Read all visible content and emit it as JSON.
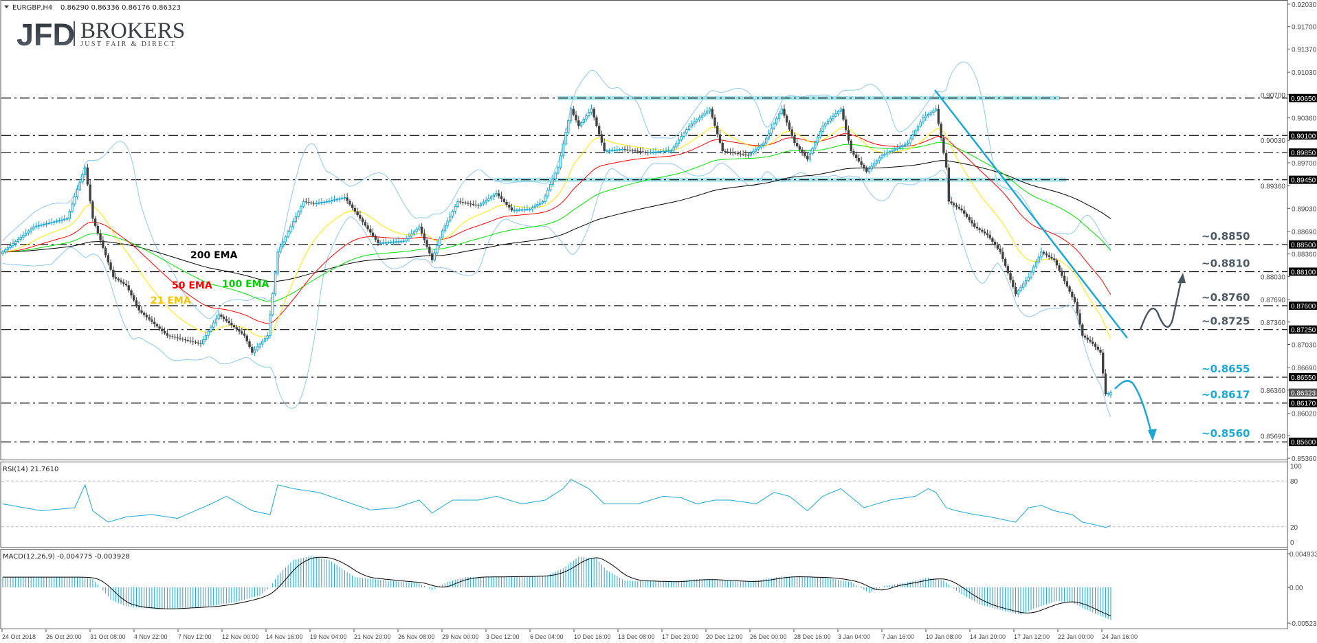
{
  "header": {
    "symbol": "EURGBP,H4",
    "ohlc": "0.86290 0.86336 0.86176 0.86323"
  },
  "logo": {
    "main": "JFD",
    "brand": "BROKERS",
    "tagline": "JUST FAIR & DIRECT"
  },
  "colors": {
    "bull": "#1aa7d6",
    "bear": "#404040",
    "ema21": "#ffe600",
    "ema50": "#ff0000",
    "ema100": "#00e000",
    "ema200": "#000000",
    "bands": "#8cc8f0",
    "zone": "#a8e4ea",
    "trend": "#1aa7d6",
    "ann_grey": "#4b5763",
    "ann_blue": "#1aa7d6"
  },
  "ema_labels": {
    "ema200": "200 EMA",
    "ema50": "50 EMA",
    "ema100": "100 EMA",
    "ema21": "21 EMA"
  },
  "price_axis": [
    "0.92030",
    "0.91700",
    "0.91370",
    "0.91030",
    "0.90700",
    "0.90360",
    "0.90030",
    "0.89700",
    "0.89360",
    "0.89030",
    "0.88690",
    "0.88360",
    "0.88030",
    "0.87690",
    "0.87360",
    "0.87030",
    "0.86690",
    "0.86360",
    "0.86020",
    "0.85690",
    "0.85360"
  ],
  "levels": [
    {
      "price": 0.9065,
      "tag": "0.90650"
    },
    {
      "price": 0.901,
      "tag": "0.90100"
    },
    {
      "price": 0.8985,
      "tag": "0.89850"
    },
    {
      "price": 0.8945,
      "tag": "0.89450"
    },
    {
      "price": 0.885,
      "tag": "0.88500"
    },
    {
      "price": 0.881,
      "tag": "0.88100"
    },
    {
      "price": 0.876,
      "tag": "0.87600"
    },
    {
      "price": 0.8725,
      "tag": "0.87250"
    },
    {
      "price": 0.8655,
      "tag": "0.86550"
    },
    {
      "price": 0.8617,
      "tag": "0.86170"
    },
    {
      "price": 0.856,
      "tag": "0.85600"
    }
  ],
  "current_price": {
    "price": 0.86323,
    "tag": "0.86323"
  },
  "annotations": [
    {
      "text": "~0.8850",
      "price": 0.885,
      "color": "grey"
    },
    {
      "text": "~0.8810",
      "price": 0.881,
      "color": "grey"
    },
    {
      "text": "~0.8760",
      "price": 0.876,
      "color": "grey"
    },
    {
      "text": "~0.8725",
      "price": 0.8725,
      "color": "grey"
    },
    {
      "text": "~0.8655",
      "price": 0.8655,
      "color": "blue"
    },
    {
      "text": "~0.8617",
      "price": 0.8617,
      "color": "blue"
    },
    {
      "text": "~0.8560",
      "price": 0.856,
      "color": "blue"
    }
  ],
  "rsi": {
    "label": "RSI(14) 21.7610",
    "axis": [
      "100",
      "80",
      "20",
      "0"
    ]
  },
  "macd": {
    "label": "MACD(12,26,9) -0.004775 -0.003928",
    "axis": [
      "0.004933",
      "0.00",
      "-0.005237"
    ]
  },
  "time_axis": [
    "24 Oct 2018",
    "26 Oct 20:00",
    "31 Oct 08:00",
    "4 Nov 22:00",
    "7 Nov 12:00",
    "12 Nov 00:00",
    "14 Nov 16:00",
    "19 Nov 04:00",
    "21 Nov 20:00",
    "26 Nov 08:00",
    "29 Nov 00:00",
    "3 Dec 12:00",
    "6 Dec 04:00",
    "10 Dec 16:00",
    "13 Dec 08:00",
    "17 Dec 20:00",
    "20 Dec 12:00",
    "26 Dec 00:00",
    "28 Dec 16:00",
    "3 Jan 04:00",
    "7 Jan 16:00",
    "10 Jan 08:00",
    "14 Jan 20:00",
    "17 Jan 12:00",
    "22 Jan 00:00",
    "24 Jan 16:00"
  ],
  "chart_data": {
    "type": "candlestick",
    "symbol": "EURGBP",
    "timeframe": "H4",
    "ylim": [
      0.8536,
      0.9203
    ],
    "close_by_bar": [
      [
        0,
        0.8839
      ],
      [
        12,
        0.8876
      ],
      [
        25,
        0.8888
      ],
      [
        32,
        0.8963
      ],
      [
        35,
        0.8888
      ],
      [
        43,
        0.8802
      ],
      [
        48,
        0.879
      ],
      [
        53,
        0.8753
      ],
      [
        64,
        0.8716
      ],
      [
        77,
        0.8704
      ],
      [
        84,
        0.8747
      ],
      [
        94,
        0.8716
      ],
      [
        97,
        0.8691
      ],
      [
        103,
        0.8716
      ],
      [
        107,
        0.8839
      ],
      [
        112,
        0.8876
      ],
      [
        117,
        0.8913
      ],
      [
        121,
        0.891
      ],
      [
        126,
        0.8913
      ],
      [
        133,
        0.8919
      ],
      [
        139,
        0.8888
      ],
      [
        146,
        0.8852
      ],
      [
        156,
        0.8855
      ],
      [
        162,
        0.8876
      ],
      [
        167,
        0.8827
      ],
      [
        171,
        0.887
      ],
      [
        177,
        0.8913
      ],
      [
        185,
        0.8907
      ],
      [
        192,
        0.8925
      ],
      [
        198,
        0.89
      ],
      [
        205,
        0.8902
      ],
      [
        210,
        0.8913
      ],
      [
        216,
        0.8963
      ],
      [
        221,
        0.9049
      ],
      [
        224,
        0.9024
      ],
      [
        229,
        0.9049
      ],
      [
        234,
        0.8987
      ],
      [
        241,
        0.899
      ],
      [
        251,
        0.8985
      ],
      [
        260,
        0.8988
      ],
      [
        267,
        0.9024
      ],
      [
        275,
        0.9049
      ],
      [
        280,
        0.8987
      ],
      [
        290,
        0.8981
      ],
      [
        296,
        0.8999
      ],
      [
        303,
        0.9049
      ],
      [
        308,
        0.8999
      ],
      [
        313,
        0.8975
      ],
      [
        319,
        0.9024
      ],
      [
        326,
        0.9049
      ],
      [
        330,
        0.8987
      ],
      [
        336,
        0.8957
      ],
      [
        342,
        0.8981
      ],
      [
        352,
        0.8999
      ],
      [
        358,
        0.9036
      ],
      [
        363,
        0.9049
      ],
      [
        367,
        0.8963
      ],
      [
        368,
        0.8913
      ],
      [
        373,
        0.89
      ],
      [
        378,
        0.8876
      ],
      [
        383,
        0.8864
      ],
      [
        388,
        0.8839
      ],
      [
        394,
        0.8777
      ],
      [
        399,
        0.8802
      ],
      [
        404,
        0.8839
      ],
      [
        409,
        0.8827
      ],
      [
        413,
        0.8796
      ],
      [
        417,
        0.8765
      ],
      [
        420,
        0.8716
      ],
      [
        424,
        0.8704
      ],
      [
        427,
        0.8691
      ],
      [
        429,
        0.863
      ],
      [
        431,
        0.86323
      ]
    ],
    "last_bar": {
      "open": 0.8629,
      "high": 0.86336,
      "low": 0.86176,
      "close": 0.86323
    },
    "ema_periods": [
      21,
      50,
      100,
      200
    ],
    "bollinger": {
      "period": 20,
      "deviation": 2
    },
    "rsi_by_bar": [
      [
        0,
        50
      ],
      [
        15,
        41
      ],
      [
        28,
        45
      ],
      [
        32,
        75
      ],
      [
        35,
        41
      ],
      [
        41,
        26
      ],
      [
        48,
        33
      ],
      [
        58,
        36
      ],
      [
        68,
        31
      ],
      [
        81,
        50
      ],
      [
        87,
        60
      ],
      [
        97,
        41
      ],
      [
        104,
        36
      ],
      [
        107,
        75
      ],
      [
        113,
        70
      ],
      [
        123,
        65
      ],
      [
        136,
        50
      ],
      [
        143,
        42
      ],
      [
        153,
        45
      ],
      [
        162,
        55
      ],
      [
        167,
        38
      ],
      [
        175,
        55
      ],
      [
        185,
        55
      ],
      [
        192,
        60
      ],
      [
        202,
        50
      ],
      [
        211,
        55
      ],
      [
        218,
        70
      ],
      [
        221,
        82
      ],
      [
        228,
        70
      ],
      [
        234,
        50
      ],
      [
        247,
        50
      ],
      [
        257,
        60
      ],
      [
        264,
        58
      ],
      [
        270,
        50
      ],
      [
        277,
        55
      ],
      [
        283,
        55
      ],
      [
        293,
        50
      ],
      [
        300,
        65
      ],
      [
        306,
        60
      ],
      [
        313,
        41
      ],
      [
        319,
        60
      ],
      [
        326,
        70
      ],
      [
        335,
        45
      ],
      [
        345,
        55
      ],
      [
        355,
        60
      ],
      [
        360,
        70
      ],
      [
        363,
        65
      ],
      [
        367,
        45
      ],
      [
        371,
        41
      ],
      [
        378,
        36
      ],
      [
        384,
        33
      ],
      [
        394,
        26
      ],
      [
        399,
        45
      ],
      [
        404,
        48
      ],
      [
        409,
        41
      ],
      [
        416,
        36
      ],
      [
        420,
        26
      ],
      [
        427,
        21
      ],
      [
        429,
        19
      ],
      [
        431,
        21.761
      ]
    ],
    "rsi_levels": [
      80,
      20
    ],
    "macd_by_bar": [
      [
        0,
        0.0015
      ],
      [
        30,
        0.0015
      ],
      [
        35,
        0.0012
      ],
      [
        38,
        0
      ],
      [
        42,
        -0.0018
      ],
      [
        48,
        -0.0028
      ],
      [
        60,
        -0.0032
      ],
      [
        80,
        -0.0028
      ],
      [
        90,
        -0.0022
      ],
      [
        100,
        -0.0012
      ],
      [
        104,
        0
      ],
      [
        107,
        0.0018
      ],
      [
        113,
        0.004
      ],
      [
        120,
        0.0046
      ],
      [
        127,
        0.004
      ],
      [
        131,
        0.003
      ],
      [
        137,
        0.0015
      ],
      [
        150,
        0.001
      ],
      [
        162,
        0.0006
      ],
      [
        167,
        -0.0004
      ],
      [
        173,
        0.0008
      ],
      [
        180,
        0.0015
      ],
      [
        205,
        0.0016
      ],
      [
        212,
        0.0018
      ],
      [
        218,
        0.0028
      ],
      [
        224,
        0.0045
      ],
      [
        231,
        0.0042
      ],
      [
        235,
        0.0025
      ],
      [
        242,
        0.001
      ],
      [
        260,
        0.0008
      ],
      [
        270,
        0.0012
      ],
      [
        290,
        0.0008
      ],
      [
        303,
        0.0016
      ],
      [
        320,
        0.0014
      ],
      [
        330,
        0.0008
      ],
      [
        337,
        -0.0008
      ],
      [
        343,
        0.0002
      ],
      [
        350,
        0.0006
      ],
      [
        360,
        0.0014
      ],
      [
        366,
        0.001
      ],
      [
        372,
        -0.0008
      ],
      [
        380,
        -0.0025
      ],
      [
        390,
        -0.0035
      ],
      [
        396,
        -0.004
      ],
      [
        402,
        -0.003
      ],
      [
        410,
        -0.002
      ],
      [
        416,
        -0.0022
      ],
      [
        421,
        -0.0032
      ],
      [
        427,
        -0.0042
      ],
      [
        431,
        -0.004775
      ]
    ],
    "macd_signal_last": -0.003928
  }
}
